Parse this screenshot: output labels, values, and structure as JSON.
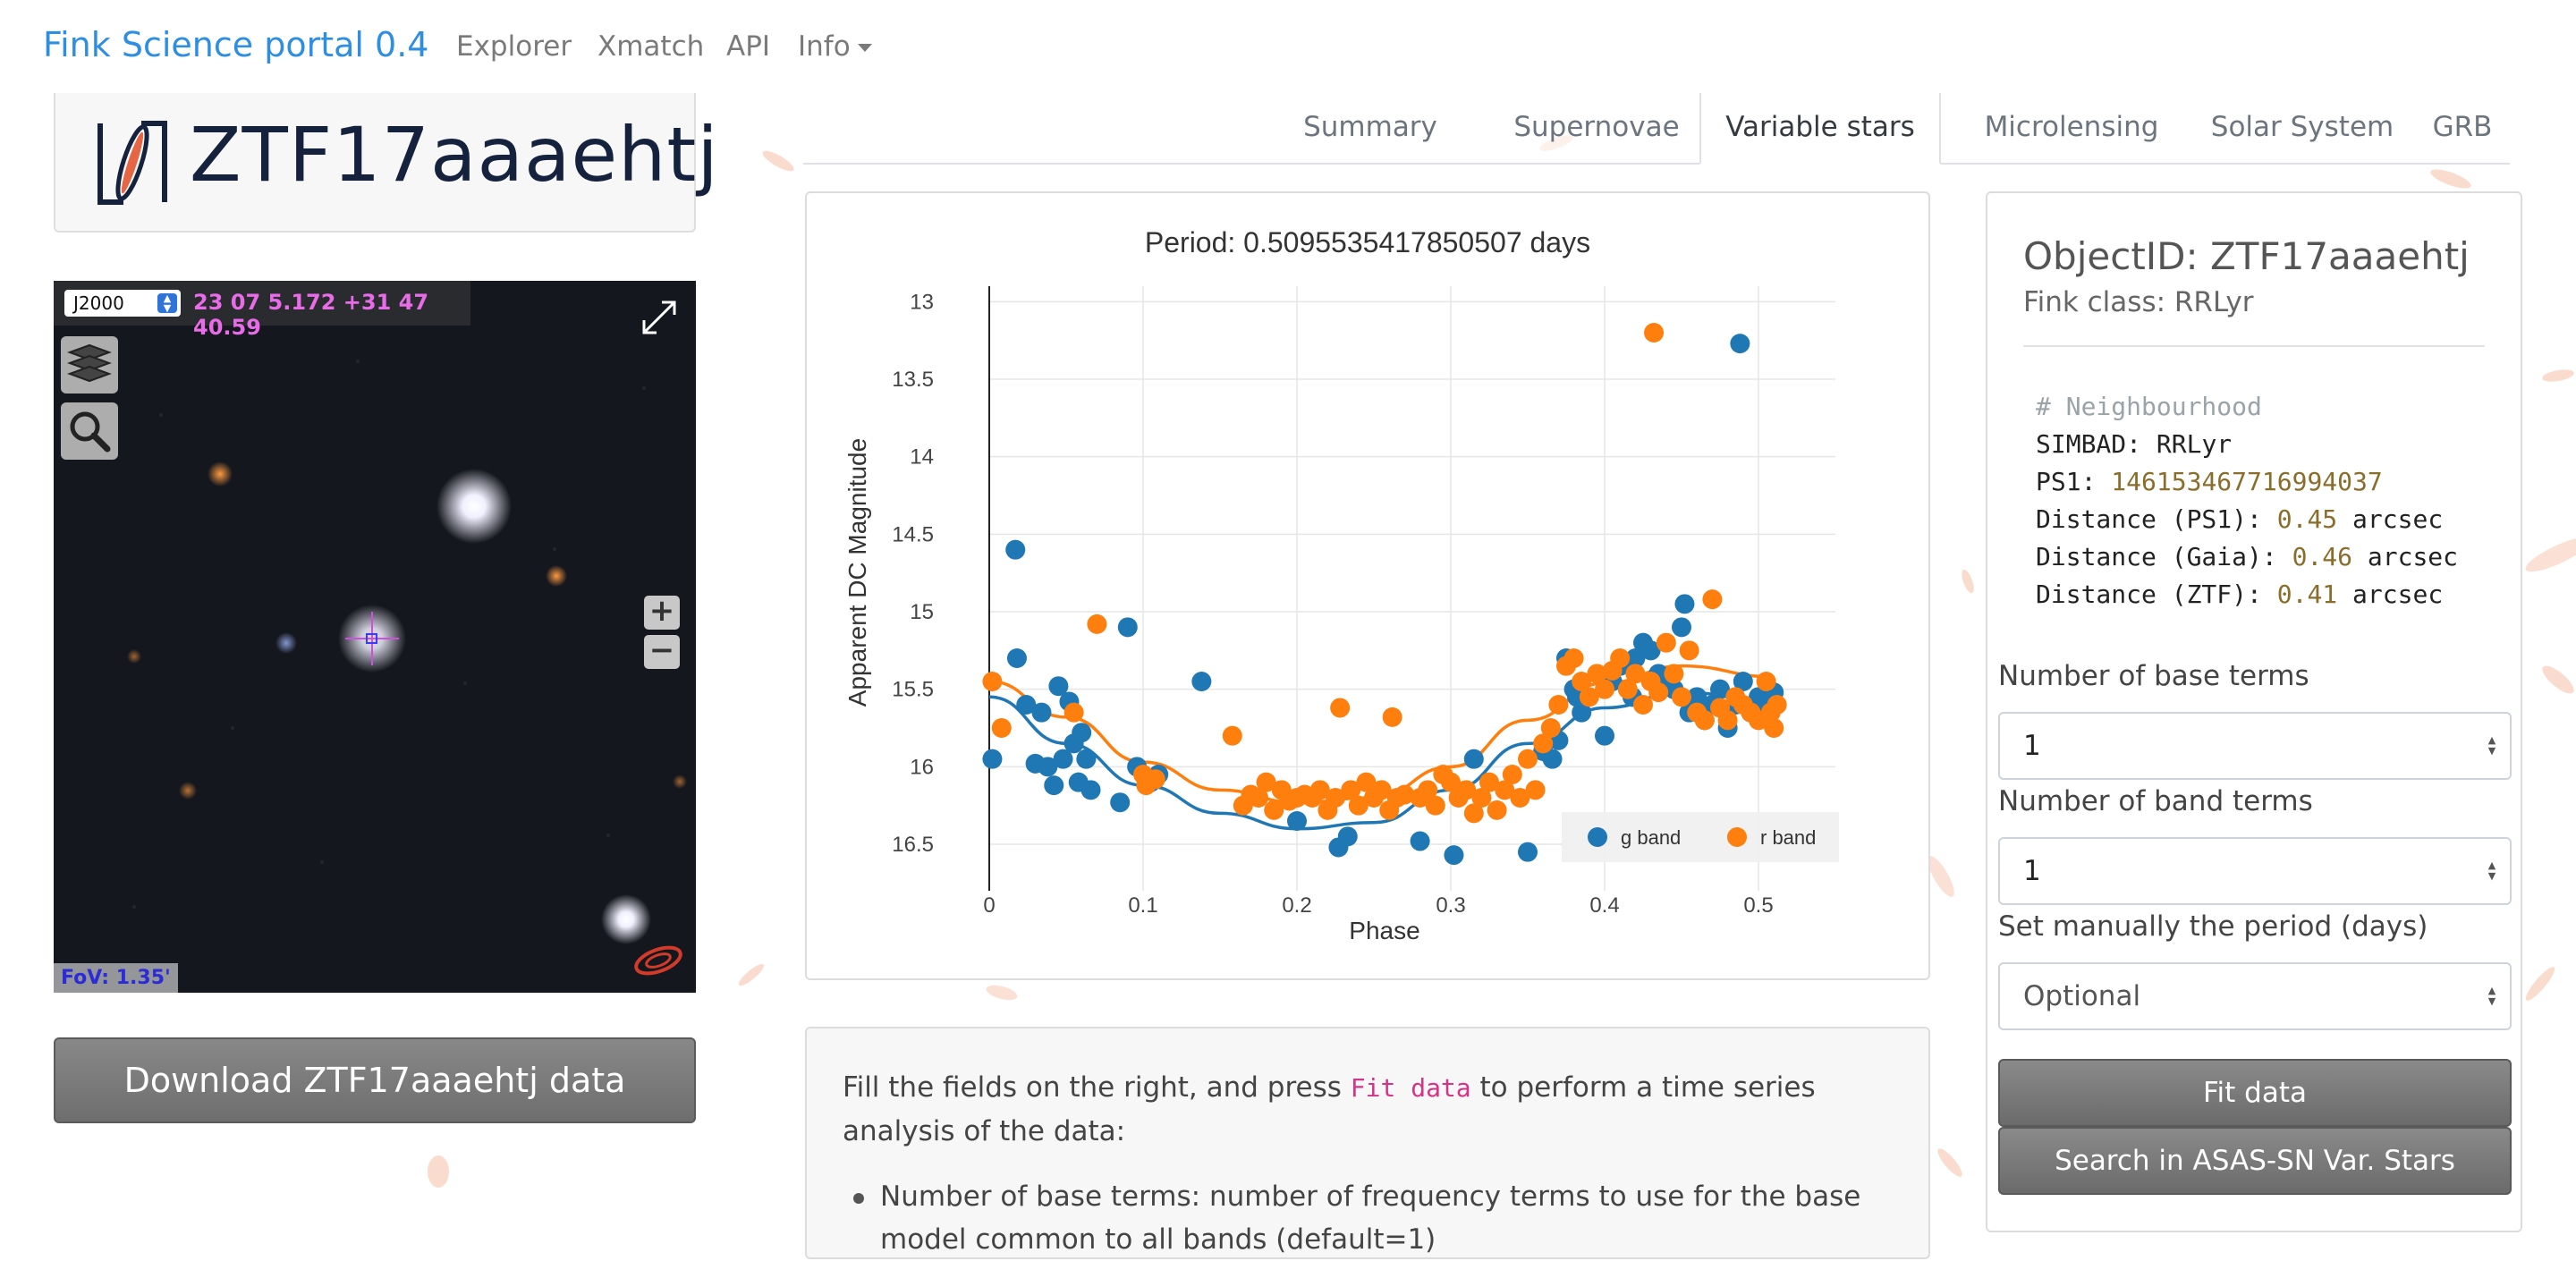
{
  "navbar": {
    "brand": "Fink Science portal 0.4",
    "links": [
      "Explorer",
      "Xmatch",
      "API",
      "Info"
    ]
  },
  "object": {
    "title": "ZTF17aaaehtj",
    "download_label": "Download ZTF17aaaehtj data"
  },
  "skyview": {
    "frame": "J2000",
    "coords": "23 07 5.172 +31 47 40.59",
    "fov": "FoV: 1.35'",
    "zoom_in": "+",
    "zoom_out": "−"
  },
  "tabs": [
    "Summary",
    "Supernovae",
    "Variable stars",
    "Microlensing",
    "Solar System",
    "GRB"
  ],
  "active_tab": "Variable stars",
  "sidebar": {
    "objectid": "ObjectID: ZTF17aaaehtj",
    "fink_class": "Fink class: RRLyr",
    "neighbourhood": {
      "comment": "# Neighbourhood",
      "simbad_key": "SIMBAD:",
      "simbad_val": "RRLyr",
      "ps1_key": "PS1:",
      "ps1_val": "146153467716994037",
      "dist_ps1_key": "Distance (PS1):",
      "dist_ps1_val": "0.45",
      "dist_gaia_key": "Distance (Gaia):",
      "dist_gaia_val": "0.46",
      "dist_ztf_key": "Distance (ZTF):",
      "dist_ztf_val": "0.41",
      "unit": "arcsec"
    },
    "base_terms_label": "Number of base terms",
    "base_terms_value": "1",
    "band_terms_label": "Number of band terms",
    "band_terms_value": "1",
    "period_label": "Set manually the period (days)",
    "period_placeholder": "Optional",
    "fit_button": "Fit data",
    "asassn_button": "Search in ASAS-SN Var. Stars"
  },
  "explanation": {
    "before": "Fill the fields on the right, and press ",
    "code": "Fit data",
    "after": " to perform a time series analysis of the data:",
    "bullet1": "Number of base terms: number of frequency terms to use for the base model common to all bands (default=1)"
  },
  "colors": {
    "brand": "#2d8ee2",
    "g_band": "#1f77b4",
    "r_band": "#ff7f0e"
  },
  "chart_data": {
    "type": "scatter",
    "title": "Period: 0.5095535417850507 days",
    "xlabel": "Phase",
    "ylabel": "Apparent DC Magnitude",
    "xlim": [
      0,
      0.55
    ],
    "ylim": [
      16.8,
      12.9
    ],
    "y_reversed": true,
    "xticks": [
      0,
      0.1,
      0.2,
      0.3,
      0.4,
      0.5
    ],
    "xtick_labels": [
      "0",
      "0.1",
      "0.2",
      "0.3",
      "0.4",
      "0.5"
    ],
    "yticks": [
      13,
      13.5,
      14,
      14.5,
      15,
      15.5,
      16,
      16.5
    ],
    "ytick_labels": [
      "13",
      "13.5",
      "14",
      "14.5",
      "15",
      "15.5",
      "16",
      "16.5"
    ],
    "grid": true,
    "legend_position": "bottom-right",
    "series": [
      {
        "name": "g band",
        "color": "#1f77b4",
        "points": [
          [
            0.002,
            15.95
          ],
          [
            0.017,
            14.6
          ],
          [
            0.018,
            15.3
          ],
          [
            0.024,
            15.6
          ],
          [
            0.03,
            15.98
          ],
          [
            0.034,
            15.65
          ],
          [
            0.038,
            16.0
          ],
          [
            0.042,
            16.12
          ],
          [
            0.045,
            15.48
          ],
          [
            0.048,
            15.95
          ],
          [
            0.052,
            15.58
          ],
          [
            0.055,
            15.85
          ],
          [
            0.058,
            16.1
          ],
          [
            0.06,
            15.78
          ],
          [
            0.063,
            15.95
          ],
          [
            0.066,
            16.15
          ],
          [
            0.085,
            16.23
          ],
          [
            0.09,
            15.1
          ],
          [
            0.096,
            16.0
          ],
          [
            0.105,
            16.1
          ],
          [
            0.11,
            16.05
          ],
          [
            0.138,
            15.45
          ],
          [
            0.2,
            16.35
          ],
          [
            0.227,
            16.52
          ],
          [
            0.233,
            16.45
          ],
          [
            0.28,
            16.48
          ],
          [
            0.302,
            16.57
          ],
          [
            0.315,
            15.95
          ],
          [
            0.35,
            16.55
          ],
          [
            0.36,
            15.9
          ],
          [
            0.366,
            15.95
          ],
          [
            0.37,
            15.83
          ],
          [
            0.375,
            15.3
          ],
          [
            0.38,
            15.5
          ],
          [
            0.382,
            15.55
          ],
          [
            0.385,
            15.65
          ],
          [
            0.4,
            15.8
          ],
          [
            0.405,
            15.45
          ],
          [
            0.41,
            15.35
          ],
          [
            0.418,
            15.55
          ],
          [
            0.42,
            15.3
          ],
          [
            0.425,
            15.2
          ],
          [
            0.43,
            15.25
          ],
          [
            0.435,
            15.4
          ],
          [
            0.44,
            15.45
          ],
          [
            0.445,
            15.5
          ],
          [
            0.45,
            15.1
          ],
          [
            0.452,
            14.95
          ],
          [
            0.455,
            15.65
          ],
          [
            0.46,
            15.55
          ],
          [
            0.465,
            15.7
          ],
          [
            0.47,
            15.6
          ],
          [
            0.475,
            15.5
          ],
          [
            0.48,
            15.75
          ],
          [
            0.485,
            15.6
          ],
          [
            0.488,
            13.27
          ],
          [
            0.49,
            15.45
          ],
          [
            0.495,
            15.65
          ],
          [
            0.5,
            15.55
          ],
          [
            0.505,
            15.6
          ],
          [
            0.51,
            15.52
          ]
        ]
      },
      {
        "name": "r band",
        "color": "#ff7f0e",
        "points": [
          [
            0.002,
            15.45
          ],
          [
            0.008,
            15.75
          ],
          [
            0.055,
            15.65
          ],
          [
            0.07,
            15.08
          ],
          [
            0.1,
            16.05
          ],
          [
            0.102,
            16.12
          ],
          [
            0.108,
            16.08
          ],
          [
            0.158,
            15.8
          ],
          [
            0.165,
            16.25
          ],
          [
            0.17,
            16.18
          ],
          [
            0.175,
            16.2
          ],
          [
            0.18,
            16.1
          ],
          [
            0.185,
            16.28
          ],
          [
            0.19,
            16.15
          ],
          [
            0.195,
            16.22
          ],
          [
            0.2,
            16.2
          ],
          [
            0.205,
            16.18
          ],
          [
            0.21,
            16.2
          ],
          [
            0.215,
            16.15
          ],
          [
            0.22,
            16.28
          ],
          [
            0.225,
            16.2
          ],
          [
            0.228,
            15.62
          ],
          [
            0.235,
            16.15
          ],
          [
            0.24,
            16.25
          ],
          [
            0.245,
            16.1
          ],
          [
            0.25,
            16.2
          ],
          [
            0.255,
            16.15
          ],
          [
            0.26,
            16.28
          ],
          [
            0.262,
            15.68
          ],
          [
            0.265,
            16.2
          ],
          [
            0.27,
            16.18
          ],
          [
            0.28,
            16.2
          ],
          [
            0.285,
            16.15
          ],
          [
            0.29,
            16.25
          ],
          [
            0.295,
            16.05
          ],
          [
            0.3,
            16.1
          ],
          [
            0.305,
            16.2
          ],
          [
            0.31,
            16.15
          ],
          [
            0.315,
            16.3
          ],
          [
            0.32,
            16.2
          ],
          [
            0.325,
            16.1
          ],
          [
            0.33,
            16.28
          ],
          [
            0.335,
            16.15
          ],
          [
            0.34,
            16.05
          ],
          [
            0.345,
            16.2
          ],
          [
            0.35,
            15.95
          ],
          [
            0.355,
            16.15
          ],
          [
            0.36,
            15.85
          ],
          [
            0.365,
            15.75
          ],
          [
            0.37,
            15.6
          ],
          [
            0.375,
            15.35
          ],
          [
            0.38,
            15.3
          ],
          [
            0.385,
            15.45
          ],
          [
            0.39,
            15.55
          ],
          [
            0.395,
            15.4
          ],
          [
            0.4,
            15.5
          ],
          [
            0.405,
            15.38
          ],
          [
            0.41,
            15.3
          ],
          [
            0.415,
            15.5
          ],
          [
            0.42,
            15.4
          ],
          [
            0.425,
            15.6
          ],
          [
            0.43,
            15.45
          ],
          [
            0.432,
            13.2
          ],
          [
            0.435,
            15.52
          ],
          [
            0.44,
            15.2
          ],
          [
            0.445,
            15.4
          ],
          [
            0.45,
            15.55
          ],
          [
            0.455,
            15.25
          ],
          [
            0.46,
            15.65
          ],
          [
            0.465,
            15.7
          ],
          [
            0.47,
            14.92
          ],
          [
            0.475,
            15.62
          ],
          [
            0.48,
            15.7
          ],
          [
            0.485,
            15.55
          ],
          [
            0.49,
            15.6
          ],
          [
            0.495,
            15.65
          ],
          [
            0.5,
            15.7
          ],
          [
            0.505,
            15.45
          ],
          [
            0.508,
            15.65
          ],
          [
            0.51,
            15.75
          ],
          [
            0.512,
            15.6
          ]
        ]
      }
    ],
    "fit_lines": [
      {
        "band": "g",
        "color": "#1f77b4",
        "points": [
          [
            0,
            15.55
          ],
          [
            0.05,
            15.85
          ],
          [
            0.1,
            16.12
          ],
          [
            0.15,
            16.3
          ],
          [
            0.2,
            16.4
          ],
          [
            0.25,
            16.36
          ],
          [
            0.3,
            16.15
          ],
          [
            0.35,
            15.85
          ],
          [
            0.4,
            15.62
          ],
          [
            0.45,
            15.52
          ],
          [
            0.51,
            15.58
          ]
        ]
      },
      {
        "band": "r",
        "color": "#ff7f0e",
        "points": [
          [
            0,
            15.45
          ],
          [
            0.05,
            15.68
          ],
          [
            0.1,
            15.97
          ],
          [
            0.15,
            16.15
          ],
          [
            0.2,
            16.23
          ],
          [
            0.25,
            16.2
          ],
          [
            0.3,
            16.0
          ],
          [
            0.35,
            15.7
          ],
          [
            0.4,
            15.46
          ],
          [
            0.45,
            15.35
          ],
          [
            0.51,
            15.42
          ]
        ]
      }
    ]
  }
}
